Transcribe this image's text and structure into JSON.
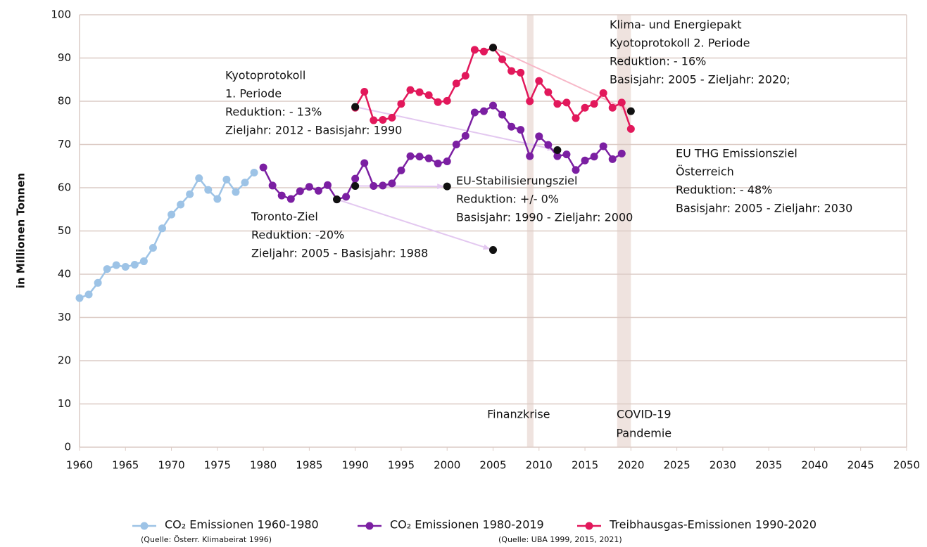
{
  "chart_data": {
    "type": "line",
    "y_label": "in Millionen Tonnen",
    "xlim": [
      1960,
      2050
    ],
    "xticks": [
      1960,
      1965,
      1970,
      1975,
      1980,
      1985,
      1990,
      1995,
      2000,
      2005,
      2010,
      2015,
      2020,
      2025,
      2030,
      2035,
      2040,
      2045,
      2050
    ],
    "ylim": [
      0,
      100
    ],
    "yticks": [
      0,
      10,
      20,
      30,
      40,
      50,
      60,
      70,
      80,
      90,
      100
    ],
    "grid": true,
    "series": [
      {
        "name": "CO₂ Emissionen 1960-1980",
        "note": "(Quelle: Österr. Klimabeirat 1996)",
        "color": "#9dc3e6",
        "x": [
          1960,
          1961,
          1962,
          1963,
          1964,
          1965,
          1966,
          1967,
          1968,
          1969,
          1970,
          1971,
          1972,
          1973,
          1974,
          1975,
          1976,
          1977,
          1978,
          1979
        ],
        "values": [
          34.5,
          35.3,
          38,
          41.2,
          42.1,
          41.7,
          42.2,
          43,
          46.1,
          50.6,
          53.8,
          56.1,
          58.5,
          62.2,
          59.5,
          57.4,
          61.9,
          59,
          61.2,
          63.5
        ]
      },
      {
        "name": "CO₂ Emissionen 1980-2019",
        "color": "#7b1fa2",
        "x": [
          1980,
          1981,
          1982,
          1983,
          1984,
          1985,
          1986,
          1987,
          1988,
          1989,
          1990,
          1991,
          1992,
          1993,
          1994,
          1995,
          1996,
          1997,
          1998,
          1999,
          2000,
          2001,
          2002,
          2003,
          2004,
          2005,
          2006,
          2007,
          2008,
          2009,
          2010,
          2011,
          2012,
          2013,
          2014,
          2015,
          2016,
          2017,
          2018,
          2019
        ],
        "values": [
          64.7,
          60.5,
          58.2,
          57.4,
          59.2,
          60.2,
          59.3,
          60.6,
          57.3,
          57.9,
          62.1,
          65.7,
          60.4,
          60.5,
          61,
          64,
          67.3,
          67.2,
          66.8,
          65.6,
          66.1,
          70,
          72,
          77.4,
          77.7,
          79,
          76.9,
          74.1,
          73.4,
          67.3,
          71.9,
          69.9,
          67.3,
          67.7,
          64.1,
          66.3,
          67.2,
          69.6,
          66.6,
          67.9
        ]
      },
      {
        "name": "Treibhausgas-Emissionen 1990-2020",
        "color": "#e2185b",
        "x": [
          1990,
          1991,
          1992,
          1993,
          1994,
          1995,
          1996,
          1997,
          1998,
          1999,
          2000,
          2001,
          2002,
          2003,
          2004,
          2005,
          2006,
          2007,
          2008,
          2009,
          2010,
          2011,
          2012,
          2013,
          2014,
          2015,
          2016,
          2017,
          2018,
          2019,
          2020
        ],
        "values": [
          78.5,
          82.2,
          75.6,
          75.7,
          76.2,
          79.4,
          82.6,
          82.1,
          81.4,
          79.8,
          80.1,
          84.1,
          85.9,
          91.9,
          91.5,
          92.4,
          89.7,
          87,
          86.6,
          80,
          84.7,
          82.1,
          79.4,
          79.7,
          76.1,
          78.5,
          79.4,
          81.9,
          78.5,
          79.7,
          73.6
        ]
      }
    ],
    "source_note": "(Quelle: UBA 1999, 2015, 2021)",
    "targets": [
      {
        "from": [
          1990,
          78.7
        ],
        "to": [
          2012,
          68.7
        ],
        "color": "#e3c8f0"
      },
      {
        "from": [
          2005,
          92.4
        ],
        "to": [
          2020,
          77.7
        ],
        "color": "#f7b8c8"
      },
      {
        "from": [
          1988,
          57.3
        ],
        "to": [
          2005,
          45.6
        ],
        "color": "#e3c8f0"
      },
      {
        "from": [
          1990,
          60.4
        ],
        "to": [
          2000,
          60.3
        ],
        "color": "#e3c8f0"
      }
    ],
    "bands": [
      {
        "from": 2008.7,
        "to": 2009.4,
        "color": "#efe3df",
        "lines": [
          "Finanzkrise"
        ]
      },
      {
        "from": 2018.5,
        "to": 2020,
        "color": "#efe3df",
        "lines": [
          "COVID-19",
          "Pandemie"
        ]
      }
    ],
    "annotations": [
      {
        "lines": [
          "Kyotoprotokoll",
          "1. Periode",
          "Reduktion: - 13%",
          "Zieljahr: 2012 - Basisjahr: 1990"
        ]
      },
      {
        "lines": [
          "Klima- und Energiepakt",
          "Kyotoprotokoll 2. Periode",
          "Reduktion: - 16%",
          "Basisjahr: 2005  - Zieljahr: 2020;"
        ]
      },
      {
        "lines": [
          "Toronto-Ziel",
          "Reduktion: -20%",
          "Zieljahr: 2005 - Basisjahr: 1988"
        ]
      },
      {
        "lines": [
          "EU-Stabilisierungsziel",
          "Reduktion: +/- 0%",
          "Basisjahr: 1990 - Zieljahr: 2000"
        ]
      },
      {
        "lines": [
          "EU THG Emissionsziel",
          "Österreich",
          "Reduktion: - 48%",
          "Basisjahr: 2005 - Zieljahr: 2030"
        ]
      }
    ]
  }
}
